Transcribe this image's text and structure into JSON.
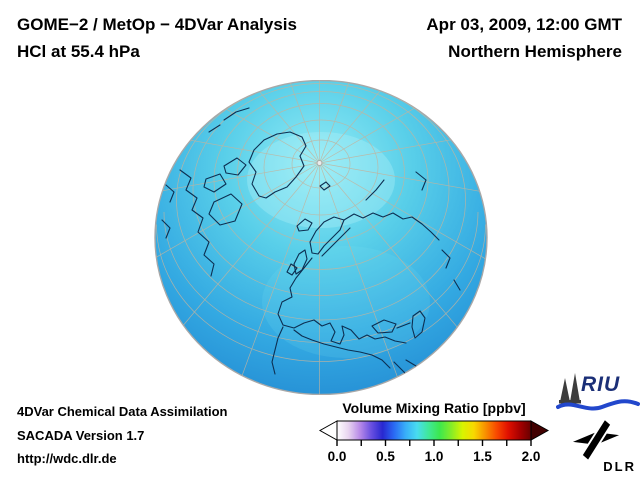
{
  "header": {
    "line1": "GOME−2 / MetOp − 4DVar Analysis",
    "line2": "HCl at 55.4 hPa",
    "datetime": "Apr 03, 2009, 12:00 GMT",
    "region": "Northern Hemisphere"
  },
  "footer": {
    "line1": "4DVar Chemical Data Assimilation",
    "line2": "SACADA Version 1.7",
    "line3": "http://wdc.dlr.de"
  },
  "colorbar": {
    "title": "Volume Mixing Ratio [ppbv]",
    "min": 0.0,
    "max": 2.0,
    "ticks": [
      "0.0",
      "0.5",
      "1.0",
      "1.5",
      "2.0"
    ],
    "gradient_stops": [
      "#ffffff",
      "#e8d4f0",
      "#b88ae8",
      "#6a50e0",
      "#2828d0",
      "#2a6af4",
      "#38aef8",
      "#48dcf0",
      "#40e89a",
      "#3ce84e",
      "#84ec28",
      "#d8f400",
      "#f8d800",
      "#f89000",
      "#f84800",
      "#e01000",
      "#a80000",
      "#680000"
    ]
  },
  "globe": {
    "gradient": [
      "#93ecf5",
      "#59cfe9",
      "#33a9e2",
      "#1d7fcd"
    ]
  },
  "colors": {
    "coastline": "#0c2f52",
    "graticule": "#c2b49e",
    "rim": "#a8a8a8",
    "pole_dot": "#ececec",
    "cb_left_arrow": "#ffffff",
    "cb_right_arrow": "#420000",
    "riu_text": "#1b2f77",
    "riu_wave": "#2247cc",
    "riu_cathedral": "#3d3d3d",
    "dlr_text": "#000000"
  }
}
